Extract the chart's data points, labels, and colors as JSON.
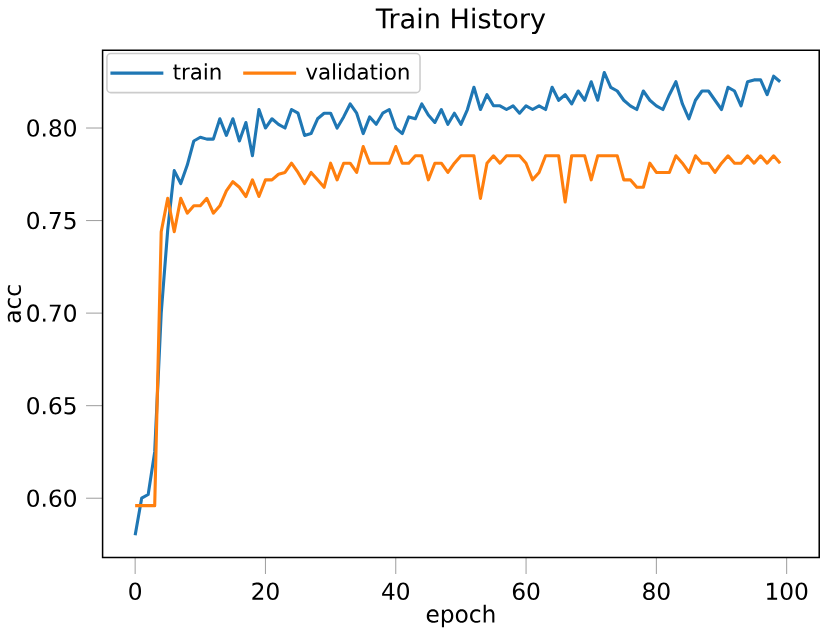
{
  "chart_data": {
    "type": "line",
    "title": "Train History",
    "xlabel": "epoch",
    "ylabel": "acc",
    "x": [
      0,
      1,
      2,
      3,
      4,
      5,
      6,
      7,
      8,
      9,
      10,
      11,
      12,
      13,
      14,
      15,
      16,
      17,
      18,
      19,
      20,
      21,
      22,
      23,
      24,
      25,
      26,
      27,
      28,
      29,
      30,
      31,
      32,
      33,
      34,
      35,
      36,
      37,
      38,
      39,
      40,
      41,
      42,
      43,
      44,
      45,
      46,
      47,
      48,
      49,
      50,
      51,
      52,
      53,
      54,
      55,
      56,
      57,
      58,
      59,
      60,
      61,
      62,
      63,
      64,
      65,
      66,
      67,
      68,
      69,
      70,
      71,
      72,
      73,
      74,
      75,
      76,
      77,
      78,
      79,
      80,
      81,
      82,
      83,
      84,
      85,
      86,
      87,
      88,
      89,
      90,
      91,
      92,
      93,
      94,
      95,
      96,
      97,
      98,
      99
    ],
    "series": [
      {
        "name": "train",
        "color": "#1f77b4",
        "values": [
          0.58,
          0.6,
          0.602,
          0.625,
          0.7,
          0.745,
          0.777,
          0.77,
          0.78,
          0.793,
          0.795,
          0.794,
          0.794,
          0.805,
          0.796,
          0.805,
          0.793,
          0.803,
          0.785,
          0.81,
          0.8,
          0.805,
          0.802,
          0.8,
          0.81,
          0.808,
          0.796,
          0.797,
          0.805,
          0.808,
          0.808,
          0.8,
          0.806,
          0.813,
          0.808,
          0.797,
          0.806,
          0.802,
          0.808,
          0.81,
          0.8,
          0.797,
          0.806,
          0.805,
          0.813,
          0.807,
          0.803,
          0.81,
          0.802,
          0.808,
          0.802,
          0.81,
          0.822,
          0.81,
          0.818,
          0.812,
          0.812,
          0.81,
          0.812,
          0.808,
          0.812,
          0.81,
          0.812,
          0.81,
          0.822,
          0.815,
          0.818,
          0.813,
          0.82,
          0.815,
          0.825,
          0.815,
          0.83,
          0.822,
          0.82,
          0.815,
          0.812,
          0.81,
          0.82,
          0.815,
          0.812,
          0.81,
          0.818,
          0.825,
          0.813,
          0.805,
          0.815,
          0.82,
          0.82,
          0.815,
          0.81,
          0.822,
          0.82,
          0.812,
          0.825,
          0.826,
          0.826,
          0.818,
          0.828,
          0.825
        ]
      },
      {
        "name": "validation",
        "color": "#ff7f0e",
        "values": [
          0.596,
          0.596,
          0.596,
          0.596,
          0.744,
          0.762,
          0.744,
          0.762,
          0.754,
          0.758,
          0.758,
          0.762,
          0.754,
          0.758,
          0.766,
          0.771,
          0.768,
          0.763,
          0.772,
          0.763,
          0.772,
          0.772,
          0.775,
          0.776,
          0.781,
          0.776,
          0.77,
          0.776,
          0.772,
          0.768,
          0.781,
          0.772,
          0.781,
          0.781,
          0.776,
          0.79,
          0.781,
          0.781,
          0.781,
          0.781,
          0.79,
          0.781,
          0.781,
          0.785,
          0.785,
          0.772,
          0.781,
          0.781,
          0.776,
          0.781,
          0.785,
          0.785,
          0.785,
          0.762,
          0.781,
          0.785,
          0.781,
          0.785,
          0.785,
          0.785,
          0.781,
          0.772,
          0.776,
          0.785,
          0.785,
          0.785,
          0.76,
          0.785,
          0.785,
          0.785,
          0.772,
          0.785,
          0.785,
          0.785,
          0.785,
          0.772,
          0.772,
          0.768,
          0.768,
          0.781,
          0.776,
          0.776,
          0.776,
          0.785,
          0.781,
          0.776,
          0.785,
          0.781,
          0.781,
          0.776,
          0.781,
          0.785,
          0.781,
          0.781,
          0.785,
          0.781,
          0.785,
          0.781,
          0.785,
          0.781
        ]
      }
    ],
    "xlim": [
      -5,
      105
    ],
    "ylim": [
      0.568,
      0.842
    ],
    "xticks": [
      {
        "value": 0,
        "label": "0"
      },
      {
        "value": 20,
        "label": "20"
      },
      {
        "value": 40,
        "label": "40"
      },
      {
        "value": 60,
        "label": "60"
      },
      {
        "value": 80,
        "label": "80"
      },
      {
        "value": 100,
        "label": "100"
      }
    ],
    "yticks": [
      {
        "value": 0.6,
        "label": "0.60"
      },
      {
        "value": 0.65,
        "label": "0.65"
      },
      {
        "value": 0.7,
        "label": "0.70"
      },
      {
        "value": 0.75,
        "label": "0.75"
      },
      {
        "value": 0.8,
        "label": "0.80"
      }
    ],
    "legend": "top left",
    "grid": false,
    "marker": "none",
    "line_style": "solid"
  }
}
